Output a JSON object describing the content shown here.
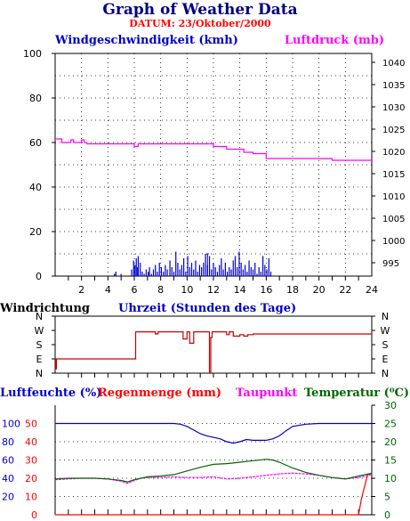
{
  "title": "Graph of Weather Data",
  "subtitle": "DATUM: 23/Oktober/2000",
  "colors": {
    "title": "#000080",
    "subtitle": "#ff0000",
    "wind_speed": "#0000cc",
    "pressure": "#ff00ff",
    "direction": "#cc0000",
    "humidity": "#0000cc",
    "rain": "#ff0000",
    "dewpoint": "#ff00ff",
    "temperature": "#006600",
    "grid": "#000000"
  },
  "chart_data": [
    {
      "type": "line",
      "name": "wind_and_pressure",
      "x_label": "Uhrzeit (Stunden des Tage)",
      "xlim": [
        0,
        24
      ],
      "x_ticks": [
        "2",
        "4",
        "6",
        "8",
        "10",
        "12",
        "14",
        "16",
        "18",
        "20",
        "22",
        "24"
      ],
      "left_axis_label": "Windgeschwindigkeit (kmh)",
      "ylim_left": [
        0,
        100
      ],
      "y_ticks_left": [
        "0",
        "20",
        "40",
        "60",
        "80",
        "100"
      ],
      "right_axis_label": "Luftdruck (mb)",
      "ylim_right": [
        992,
        1042
      ],
      "y_ticks_right": [
        "995",
        "1000",
        "1005",
        "1010",
        "1015",
        "1020",
        "1025",
        "1030",
        "1035",
        "1040"
      ],
      "series": [
        {
          "name": "Windgeschwindigkeit (kmh)",
          "axis": "left",
          "color": "#0000cc",
          "style": "bars",
          "x": [
            4.5,
            4.6,
            4.7,
            5.0,
            5.8,
            5.95,
            6.05,
            6.15,
            6.25,
            6.3,
            6.45,
            6.6,
            6.75,
            6.9,
            7.05,
            7.15,
            7.3,
            7.45,
            7.6,
            7.75,
            7.9,
            8.05,
            8.2,
            8.35,
            8.5,
            8.7,
            8.85,
            9.0,
            9.15,
            9.3,
            9.45,
            9.6,
            9.75,
            9.9,
            10.05,
            10.2,
            10.35,
            10.5,
            10.65,
            10.8,
            10.95,
            11.1,
            11.25,
            11.4,
            11.55,
            11.7,
            11.85,
            12.0,
            12.15,
            12.3,
            12.45,
            12.6,
            12.75,
            12.9,
            13.05,
            13.2,
            13.35,
            13.5,
            13.65,
            13.8,
            13.95,
            14.1,
            14.25,
            14.4,
            14.55,
            14.7,
            14.85,
            15.0,
            15.15,
            15.3,
            15.45,
            15.6,
            15.75,
            15.9,
            16.05,
            16.2,
            16.35
          ],
          "values": [
            1,
            2,
            0,
            1,
            3,
            7,
            5,
            8,
            4,
            9,
            6,
            2,
            1,
            3,
            2,
            4,
            1,
            3,
            5,
            2,
            6,
            4,
            2,
            5,
            3,
            7,
            4,
            2,
            11,
            6,
            3,
            5,
            8,
            2,
            9,
            4,
            6,
            3,
            7,
            2,
            5,
            4,
            6,
            10,
            5,
            9,
            3,
            6,
            4,
            2,
            5,
            8,
            3,
            6,
            2,
            4,
            3,
            7,
            9,
            4,
            11,
            6,
            3,
            5,
            2,
            7,
            4,
            3,
            6,
            1,
            4,
            2,
            9,
            5,
            3,
            8,
            2
          ]
        },
        {
          "name": "Luftdruck (mb)",
          "axis": "right",
          "color": "#ff00ff",
          "style": "step",
          "x": [
            0,
            0.5,
            1.0,
            1.2,
            1.4,
            1.6,
            2.0,
            2.2,
            2.4,
            3.5,
            5.0,
            6.0,
            6.3,
            7.5,
            9.0,
            11.0,
            11.3,
            12.0,
            13.0,
            14.0,
            14.3,
            15.0,
            16.0,
            17.5,
            19.0,
            20.0,
            21.0,
            22.0,
            23.0,
            24.0
          ],
          "values": [
            1022.8,
            1022.0,
            1022.0,
            1022.6,
            1022.0,
            1022.0,
            1022.6,
            1022.0,
            1021.7,
            1021.7,
            1021.7,
            1021.1,
            1021.7,
            1021.7,
            1021.7,
            1021.7,
            1021.7,
            1021.1,
            1020.5,
            1020.5,
            1019.8,
            1019.5,
            1018.4,
            1018.4,
            1018.4,
            1018.4,
            1018.0,
            1018.0,
            1018.0,
            1018.0
          ]
        }
      ]
    },
    {
      "type": "line",
      "name": "wind_direction",
      "left_axis_label": "Windrichtung",
      "xlim": [
        0,
        24
      ],
      "y_categories": [
        "N",
        "W",
        "S",
        "E",
        "N"
      ],
      "series": [
        {
          "name": "Windrichtung",
          "color": "#cc0000",
          "style": "step",
          "x": [
            0,
            0.05,
            0.1,
            6.0,
            6.1,
            7.5,
            7.6,
            7.8,
            8.0,
            9.5,
            9.7,
            10.0,
            10.2,
            10.5,
            10.8,
            11.0,
            11.4,
            11.7,
            11.8,
            11.9,
            12.0,
            12.5,
            13.0,
            13.2,
            13.5,
            13.8,
            14.0,
            14.3,
            14.6,
            15.0,
            24.0
          ],
          "values": [
            1.0,
            0.3,
            1.0,
            1.0,
            2.9,
            2.9,
            2.75,
            2.9,
            2.9,
            2.9,
            2.4,
            2.9,
            2.1,
            2.9,
            2.9,
            2.9,
            2.9,
            0.0,
            2.5,
            2.9,
            2.9,
            2.9,
            2.7,
            2.9,
            2.6,
            2.6,
            2.7,
            2.6,
            2.7,
            2.75,
            2.75
          ]
        }
      ]
    },
    {
      "type": "line",
      "name": "humidity_rain_dew_temp",
      "xlim": [
        0,
        24
      ],
      "axis1_label": "Luftfeuchte (%)",
      "axis1_ticks": [
        "20",
        "40",
        "60",
        "80",
        "100"
      ],
      "axis2_label": "Regenmenge (mm)",
      "axis2_ticks": [
        "0",
        "10",
        "20",
        "30",
        "40",
        "50"
      ],
      "axis3_label": "Taupunkt",
      "axis4_label": "Temperatur (⁰C)",
      "axis4_ticks": [
        "0",
        "5",
        "10",
        "15",
        "20",
        "25",
        "30"
      ],
      "ylim_right": [
        0,
        30
      ],
      "series": [
        {
          "name": "Luftfeuchte (%)",
          "color": "#0000cc",
          "x": [
            0,
            2,
            4,
            6,
            7,
            8,
            8.5,
            9,
            9.5,
            10,
            10.5,
            11,
            11.5,
            12,
            12.5,
            13,
            13.5,
            14,
            14.5,
            15,
            15.5,
            16,
            16.5,
            17,
            17.5,
            18,
            19,
            20,
            21,
            22,
            23,
            24
          ],
          "values_right": [
            25,
            25,
            25,
            25,
            25,
            25,
            25,
            25,
            24.8,
            24.2,
            23.2,
            22.2,
            21.6,
            21.2,
            20.8,
            20.0,
            19.6,
            20.0,
            20.6,
            20.4,
            20.4,
            20.4,
            20.8,
            21.6,
            23.0,
            24.2,
            24.8,
            25,
            25,
            25,
            25,
            25
          ]
        },
        {
          "name": "Regenmenge (mm)",
          "color": "#ff0000",
          "x": [
            0,
            22.9,
            23.0,
            23.2,
            23.4,
            23.7,
            24
          ],
          "values_right": [
            0,
            0,
            0,
            4,
            7,
            11,
            11
          ]
        },
        {
          "name": "Taupunkt",
          "color": "#ff00ff",
          "x": [
            0,
            1,
            2,
            3,
            4,
            5,
            5.5,
            6,
            6.5,
            7,
            8,
            9,
            10,
            11,
            12,
            13,
            14,
            15,
            16,
            17,
            18,
            19,
            20,
            21,
            22,
            23,
            24
          ],
          "values_right": [
            9.6,
            9.8,
            10.0,
            10.0,
            9.8,
            9.2,
            8.6,
            9.4,
            10.0,
            10.2,
            10.2,
            10.4,
            10.2,
            10.2,
            10.4,
            9.8,
            10.0,
            10.4,
            10.8,
            11.2,
            11.4,
            11.2,
            10.8,
            10.2,
            9.8,
            10.2,
            11.0
          ]
        },
        {
          "name": "Temperatur (⁰C)",
          "color": "#006600",
          "x": [
            0,
            1,
            2,
            3,
            4,
            5,
            5.5,
            6,
            6.5,
            7,
            8,
            9,
            10,
            11,
            12,
            13,
            14,
            15,
            16,
            16.5,
            17,
            18,
            19,
            20,
            21,
            22,
            23,
            24
          ],
          "values_right": [
            9.8,
            10.0,
            10.0,
            10.0,
            9.8,
            9.4,
            9.0,
            9.6,
            10.0,
            10.4,
            10.6,
            11.0,
            12.0,
            13.0,
            13.8,
            14.0,
            14.4,
            14.8,
            15.2,
            15.0,
            14.4,
            12.8,
            11.6,
            10.8,
            10.2,
            9.8,
            10.6,
            11.4
          ]
        }
      ]
    }
  ]
}
